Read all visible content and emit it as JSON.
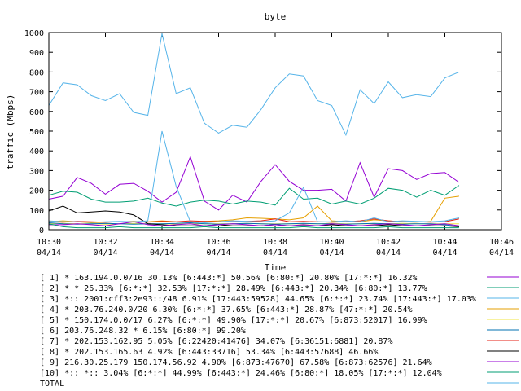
{
  "chart_data": {
    "type": "line",
    "title": "byte",
    "xlabel": "Time",
    "ylabel": "traffic (Mbps)",
    "ylim": [
      0,
      1000
    ],
    "yticks": [
      0,
      100,
      200,
      300,
      400,
      500,
      600,
      700,
      800,
      900,
      1000
    ],
    "xlim": [
      "10:30",
      "10:46"
    ],
    "xticks": [
      {
        "t": "10:30",
        "m": 0,
        "date": "04/14"
      },
      {
        "t": "10:32",
        "m": 2,
        "date": "04/14"
      },
      {
        "t": "10:34",
        "m": 4,
        "date": "04/14"
      },
      {
        "t": "10:36",
        "m": 6,
        "date": "04/14"
      },
      {
        "t": "10:38",
        "m": 8,
        "date": "04/14"
      },
      {
        "t": "10:40",
        "m": 10,
        "date": "04/14"
      },
      {
        "t": "10:42",
        "m": 12,
        "date": "04/14"
      },
      {
        "t": "10:44",
        "m": 14,
        "date": "04/14"
      },
      {
        "t": "10:46",
        "m": 16,
        "date": "04/14"
      }
    ],
    "x": [
      "10:30:00",
      "10:30:30",
      "10:31:00",
      "10:31:30",
      "10:32:00",
      "10:32:30",
      "10:33:00",
      "10:33:30",
      "10:34:00",
      "10:34:30",
      "10:35:00",
      "10:35:30",
      "10:36:00",
      "10:36:30",
      "10:37:00",
      "10:37:30",
      "10:38:00",
      "10:38:30",
      "10:39:00",
      "10:39:30",
      "10:40:00",
      "10:40:30",
      "10:41:00",
      "10:41:30",
      "10:42:00",
      "10:42:30",
      "10:43:00",
      "10:43:30",
      "10:44:00",
      "10:44:30"
    ],
    "grid": false,
    "legend_position": "bottom",
    "series": [
      {
        "name": "[ 1] * 163.194.0.0/16 30.13%  [6:443:*] 50.56%  [6:80:*] 20.80%  [17:*:*] 16.32%",
        "color": "#9400d3",
        "values": [
          155,
          170,
          265,
          235,
          180,
          230,
          235,
          195,
          140,
          190,
          370,
          145,
          100,
          175,
          140,
          245,
          330,
          245,
          200,
          200,
          205,
          145,
          340,
          165,
          310,
          300,
          255,
          285,
          290,
          240
        ]
      },
      {
        "name": "[ 2] * * 26.33%  [6:*:*] 32.53%  [17:*:*] 28.49%  [6:443:*] 20.34%  [6:80:*] 13.77%",
        "color": "#009e73",
        "values": [
          175,
          195,
          190,
          155,
          140,
          140,
          145,
          160,
          135,
          120,
          140,
          150,
          145,
          130,
          145,
          140,
          125,
          210,
          155,
          160,
          130,
          145,
          130,
          160,
          210,
          200,
          165,
          200,
          175,
          225
        ]
      },
      {
        "name": "[ 3] *:: 2001:cff3:2e93::/48 6.91%  [17:443:59528] 44.65%  [6:*:*] 23.74%  [17:443:*] 17.03%",
        "color": "#56b4e9",
        "values": [
          630,
          745,
          735,
          680,
          655,
          690,
          595,
          580,
          995,
          690,
          720,
          540,
          490,
          530,
          520,
          610,
          720,
          790,
          780,
          655,
          630,
          480,
          710,
          640,
          750,
          670,
          685,
          675,
          770,
          800
        ]
      },
      {
        "name": "[ 4] * 203.76.240.0/20 6.30%  [6:*:*] 37.65%  [6:443:*] 28.87%  [47:*:*] 20.54%",
        "color": "#e69f00",
        "values": [
          40,
          45,
          40,
          35,
          38,
          40,
          42,
          40,
          45,
          40,
          38,
          42,
          45,
          50,
          60,
          58,
          55,
          50,
          60,
          120,
          45,
          40,
          40,
          50,
          45,
          40,
          38,
          42,
          160,
          170
        ]
      },
      {
        "name": "[ 5] * 150.174.0.0/17 6.27%  [6:*:*] 49.90%  [17:*:*] 20.67%  [6:873:52017] 16.99%",
        "color": "#f0e442",
        "values": [
          30,
          32,
          30,
          30,
          28,
          30,
          32,
          30,
          30,
          28,
          30,
          30,
          30,
          30,
          32,
          30,
          30,
          30,
          30,
          30,
          32,
          30,
          30,
          30,
          30,
          32,
          30,
          30,
          30,
          30
        ]
      },
      {
        "name": "[ 6] 203.76.248.32 * 6.15%  [6:80:*] 99.20%",
        "color": "#0072b2",
        "values": [
          35,
          30,
          28,
          30,
          32,
          30,
          28,
          30,
          30,
          32,
          35,
          30,
          28,
          30,
          32,
          30,
          28,
          30,
          32,
          30,
          30,
          28,
          30,
          32,
          30,
          28,
          30,
          30,
          25,
          15
        ]
      },
      {
        "name": "[ 7] * 202.153.162.95 5.05%  [6:22420:41476] 34.07%  [6:36151:6881] 20.87%",
        "color": "#e51e10",
        "values": [
          40,
          38,
          42,
          40,
          38,
          40,
          40,
          38,
          42,
          40,
          45,
          42,
          40,
          40,
          42,
          45,
          55,
          40,
          42,
          40,
          38,
          40,
          45,
          55,
          45,
          40,
          40,
          38,
          40,
          55
        ]
      },
      {
        "name": "[ 8] * 202.153.165.63 4.92%  [6:443:33716] 53.34%  [6:443:57688] 46.66%",
        "color": "#000000",
        "values": [
          95,
          120,
          85,
          90,
          95,
          90,
          75,
          30,
          25,
          20,
          20,
          20,
          25,
          20,
          20,
          20,
          25,
          20,
          20,
          20,
          25,
          20,
          20,
          20,
          25,
          20,
          20,
          20,
          20,
          15
        ]
      },
      {
        "name": "[ 9] 216.30.25.179 150.174.56.92 4.90%  [6:873:47670] 67.58%  [6:873:62576] 21.64%",
        "color": "#9400d3",
        "values": [
          25,
          25,
          30,
          25,
          20,
          30,
          40,
          25,
          20,
          25,
          30,
          20,
          25,
          30,
          25,
          20,
          25,
          20,
          25,
          20,
          30,
          25,
          20,
          25,
          30,
          25,
          20,
          25,
          30,
          20
        ]
      },
      {
        "name": "[10] *:: *:: 3.04%  [6:*:*] 44.99%  [6:443:*] 24.46%  [6:80:*] 18.05%  [17:*:*] 12.04%",
        "color": "#009e73",
        "values": [
          30,
          15,
          10,
          10,
          10,
          15,
          10,
          10,
          10,
          10,
          10,
          15,
          10,
          10,
          10,
          10,
          10,
          10,
          15,
          10,
          10,
          10,
          10,
          10,
          15,
          10,
          10,
          10,
          10,
          10
        ]
      },
      {
        "name": "TOTAL",
        "color": "#56b4e9",
        "values": [
          45,
          40,
          40,
          38,
          40,
          42,
          40,
          45,
          500,
          220,
          40,
          35,
          40,
          45,
          42,
          40,
          45,
          85,
          215,
          40,
          40,
          45,
          40,
          60,
          40,
          45,
          42,
          40,
          45,
          60
        ]
      }
    ]
  }
}
